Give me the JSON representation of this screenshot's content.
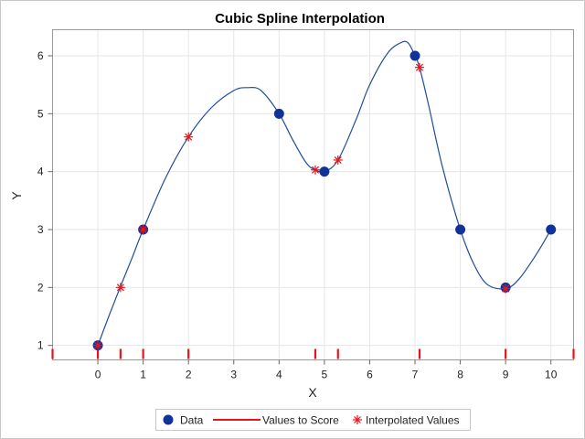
{
  "chart_data": {
    "type": "line",
    "title": "Cubic Spline Interpolation",
    "xlabel": "X",
    "ylabel": "Y",
    "xlim": [
      -1,
      10.5
    ],
    "ylim": [
      0.75,
      6.45
    ],
    "xticks": [
      0,
      1,
      2,
      3,
      4,
      5,
      6,
      7,
      8,
      9,
      10
    ],
    "yticks": [
      1,
      2,
      3,
      4,
      5,
      6
    ],
    "grid": true,
    "legend_position": "bottom",
    "colors": {
      "data": "#10329a",
      "curve": "#1f4e9a",
      "score": "#e8141c",
      "interp": "#e8141c",
      "grid": "#e6e6e6"
    },
    "series": [
      {
        "name": "Data",
        "kind": "marker",
        "points": [
          [
            0,
            1
          ],
          [
            1,
            3
          ],
          [
            4,
            5
          ],
          [
            5,
            4
          ],
          [
            7,
            6
          ],
          [
            8,
            3
          ],
          [
            9,
            2
          ],
          [
            10,
            3
          ]
        ]
      },
      {
        "name": "Values to Score",
        "kind": "rug",
        "x": [
          -1,
          0,
          0.5,
          1,
          2,
          4.8,
          5.3,
          7.1,
          9,
          10.5
        ]
      },
      {
        "name": "Interpolated Values",
        "kind": "star",
        "points": [
          [
            0,
            1
          ],
          [
            0.5,
            2
          ],
          [
            1,
            3
          ],
          [
            2,
            4.6
          ],
          [
            4.8,
            4.03
          ],
          [
            5.3,
            4.2
          ],
          [
            7.1,
            5.8
          ],
          [
            9,
            1.98
          ]
        ]
      }
    ],
    "curve": [
      [
        0,
        1
      ],
      [
        0.25,
        1.52
      ],
      [
        0.5,
        2.02
      ],
      [
        0.75,
        2.5
      ],
      [
        1,
        3
      ],
      [
        1.5,
        3.9
      ],
      [
        2,
        4.6
      ],
      [
        2.5,
        5.1
      ],
      [
        3,
        5.4
      ],
      [
        3.3,
        5.45
      ],
      [
        3.6,
        5.4
      ],
      [
        4,
        5
      ],
      [
        4.3,
        4.55
      ],
      [
        4.6,
        4.15
      ],
      [
        4.8,
        4.03
      ],
      [
        5,
        4
      ],
      [
        5.3,
        4.2
      ],
      [
        5.7,
        4.9
      ],
      [
        6,
        5.5
      ],
      [
        6.4,
        6.05
      ],
      [
        6.7,
        6.23
      ],
      [
        6.85,
        6.22
      ],
      [
        7,
        6
      ],
      [
        7.1,
        5.8
      ],
      [
        7.3,
        5.15
      ],
      [
        7.6,
        4.1
      ],
      [
        8,
        3
      ],
      [
        8.3,
        2.4
      ],
      [
        8.6,
        2.05
      ],
      [
        9,
        1.98
      ],
      [
        9.3,
        2.15
      ],
      [
        9.7,
        2.6
      ],
      [
        10,
        3
      ]
    ]
  }
}
